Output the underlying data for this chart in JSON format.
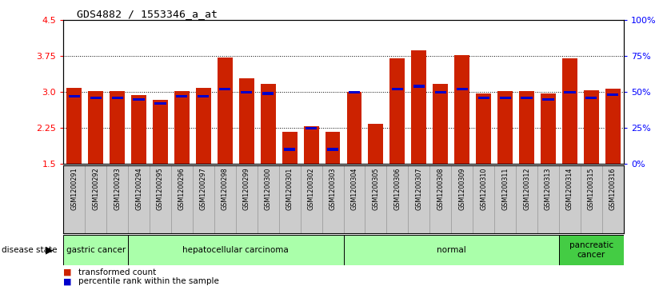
{
  "title": "GDS4882 / 1553346_a_at",
  "samples": [
    "GSM1200291",
    "GSM1200292",
    "GSM1200293",
    "GSM1200294",
    "GSM1200295",
    "GSM1200296",
    "GSM1200297",
    "GSM1200298",
    "GSM1200299",
    "GSM1200300",
    "GSM1200301",
    "GSM1200302",
    "GSM1200303",
    "GSM1200304",
    "GSM1200305",
    "GSM1200306",
    "GSM1200307",
    "GSM1200308",
    "GSM1200309",
    "GSM1200310",
    "GSM1200311",
    "GSM1200312",
    "GSM1200313",
    "GSM1200314",
    "GSM1200315",
    "GSM1200316"
  ],
  "transformed_count": [
    3.08,
    3.02,
    3.02,
    2.93,
    2.83,
    3.02,
    3.08,
    3.73,
    3.28,
    3.17,
    2.17,
    2.28,
    2.17,
    3.0,
    2.33,
    3.7,
    3.87,
    3.17,
    3.77,
    2.97,
    3.02,
    3.02,
    2.97,
    3.7,
    3.03,
    3.07
  ],
  "percentile_rank": [
    47,
    46,
    46,
    45,
    42,
    47,
    47,
    52,
    50,
    49,
    10,
    25,
    10,
    50,
    28,
    52,
    54,
    50,
    52,
    46,
    46,
    46,
    45,
    50,
    46,
    48
  ],
  "group_labels": [
    "gastric cancer",
    "hepatocellular carcinoma",
    "normal",
    "pancreatic\ncancer"
  ],
  "group_starts": [
    0,
    3,
    13,
    23
  ],
  "group_ends": [
    3,
    13,
    23,
    26
  ],
  "group_colors": [
    "#aaffaa",
    "#aaffaa",
    "#aaffaa",
    "#44cc44"
  ],
  "ylim": [
    1.5,
    4.5
  ],
  "yticks_left": [
    1.5,
    2.25,
    3.0,
    3.75,
    4.5
  ],
  "yticks_right_vals": [
    0,
    25,
    50,
    75,
    100
  ],
  "grid_lines": [
    2.25,
    3.0,
    3.75
  ],
  "bar_color": "#cc2200",
  "percentile_color": "#0000cc",
  "bar_width": 0.7,
  "tick_bg_color": "#cccccc",
  "tick_border_color": "#999999"
}
